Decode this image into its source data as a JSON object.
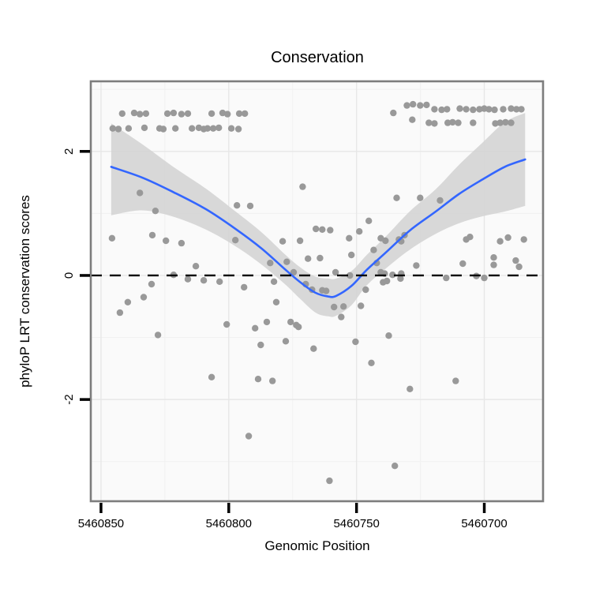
{
  "title": "Conservation",
  "colors": {
    "point": "#999999",
    "smooth_line": "#3366FF",
    "ribbon": "#d4d4d4",
    "panel_background": "#fafafa",
    "panel_border": "#7d7d7d",
    "grid_major": "#e7e7e7",
    "grid_minor": "#f2f2f2",
    "reference_line": "#000000",
    "tick_mark": "#000000",
    "text": "#000000"
  },
  "chart_data": {
    "type": "scatter",
    "title": "Conservation",
    "xlabel": "Genomic Position",
    "ylabel": "phyloP LRT conservation scores",
    "x_reversed": true,
    "xlim": [
      5460854,
      5460677
    ],
    "ylim": [
      -3.64,
      3.13
    ],
    "x_ticks": [
      5460850,
      5460800,
      5460750,
      5460700
    ],
    "x_minor": [
      5460825,
      5460775,
      5460725
    ],
    "y_ticks": [
      2,
      0,
      -2
    ],
    "y_minor": [
      3,
      1,
      -1,
      -3
    ],
    "grid": true,
    "legend": "none",
    "reference_line_y": 0,
    "points": [
      [
        5460841.7,
        2.61
      ],
      [
        5460837.0,
        2.62
      ],
      [
        5460834.8,
        2.6
      ],
      [
        5460832.4,
        2.61
      ],
      [
        5460824.0,
        2.61
      ],
      [
        5460821.6,
        2.62
      ],
      [
        5460818.5,
        2.6
      ],
      [
        5460816.0,
        2.61
      ],
      [
        5460806.7,
        2.61
      ],
      [
        5460802.4,
        2.62
      ],
      [
        5460800.5,
        2.6
      ],
      [
        5460795.9,
        2.61
      ],
      [
        5460793.7,
        2.61
      ],
      [
        5460845.4,
        2.37
      ],
      [
        5460843.2,
        2.36
      ],
      [
        5460839.2,
        2.37
      ],
      [
        5460833.0,
        2.38
      ],
      [
        5460827.1,
        2.37
      ],
      [
        5460825.6,
        2.36
      ],
      [
        5460820.9,
        2.37
      ],
      [
        5460814.4,
        2.37
      ],
      [
        5460811.7,
        2.38
      ],
      [
        5460809.8,
        2.36
      ],
      [
        5460808.3,
        2.37
      ],
      [
        5460806.1,
        2.37
      ],
      [
        5460803.9,
        2.38
      ],
      [
        5460799.0,
        2.37
      ],
      [
        5460796.2,
        2.36
      ],
      [
        5460730.3,
        2.74
      ],
      [
        5460727.9,
        2.76
      ],
      [
        5460725.1,
        2.74
      ],
      [
        5460722.6,
        2.75
      ],
      [
        5460719.5,
        2.68
      ],
      [
        5460716.7,
        2.67
      ],
      [
        5460714.6,
        2.68
      ],
      [
        5460709.6,
        2.69
      ],
      [
        5460707.1,
        2.68
      ],
      [
        5460704.4,
        2.67
      ],
      [
        5460701.9,
        2.68
      ],
      [
        5460700.0,
        2.69
      ],
      [
        5460698.2,
        2.68
      ],
      [
        5460696.0,
        2.67
      ],
      [
        5460692.6,
        2.68
      ],
      [
        5460689.5,
        2.69
      ],
      [
        5460687.4,
        2.68
      ],
      [
        5460685.5,
        2.68
      ],
      [
        5460721.7,
        2.46
      ],
      [
        5460719.5,
        2.45
      ],
      [
        5460714.3,
        2.46
      ],
      [
        5460712.4,
        2.47
      ],
      [
        5460710.2,
        2.46
      ],
      [
        5460704.4,
        2.46
      ],
      [
        5460695.7,
        2.45
      ],
      [
        5460693.8,
        2.46
      ],
      [
        5460691.7,
        2.47
      ],
      [
        5460689.5,
        2.46
      ],
      [
        5460735.6,
        2.62
      ],
      [
        5460728.2,
        2.51
      ],
      [
        5460834.8,
        1.33
      ],
      [
        5460828.7,
        1.04
      ],
      [
        5460796.8,
        1.13
      ],
      [
        5460791.6,
        1.12
      ],
      [
        5460771.1,
        1.43
      ],
      [
        5460734.3,
        1.25
      ],
      [
        5460725.1,
        1.25
      ],
      [
        5460717.3,
        1.21
      ],
      [
        5460845.7,
        0.6
      ],
      [
        5460829.9,
        0.65
      ],
      [
        5460824.6,
        0.56
      ],
      [
        5460818.5,
        0.52
      ],
      [
        5460797.4,
        0.57
      ],
      [
        5460778.9,
        0.55
      ],
      [
        5460772.1,
        0.56
      ],
      [
        5460765.9,
        0.75
      ],
      [
        5460763.4,
        0.74
      ],
      [
        5460760.3,
        0.73
      ],
      [
        5460752.9,
        0.6
      ],
      [
        5460748.9,
        0.71
      ],
      [
        5460745.2,
        0.88
      ],
      [
        5460743.3,
        0.41
      ],
      [
        5460740.5,
        0.6
      ],
      [
        5460738.7,
        0.56
      ],
      [
        5460733.4,
        0.58
      ],
      [
        5460732.5,
        0.55
      ],
      [
        5460731.2,
        0.65
      ],
      [
        5460707.1,
        0.58
      ],
      [
        5460705.6,
        0.62
      ],
      [
        5460693.8,
        0.55
      ],
      [
        5460690.7,
        0.61
      ],
      [
        5460684.5,
        0.58
      ],
      [
        5460812.9,
        0.15
      ],
      [
        5460821.6,
        0.01
      ],
      [
        5460816.0,
        -0.06
      ],
      [
        5460809.8,
        -0.08
      ],
      [
        5460803.6,
        -0.1
      ],
      [
        5460783.8,
        0.2
      ],
      [
        5460777.3,
        0.22
      ],
      [
        5460774.6,
        0.05
      ],
      [
        5460769.0,
        0.27
      ],
      [
        5460764.3,
        0.28
      ],
      [
        5460758.2,
        0.05
      ],
      [
        5460752.0,
        0.33
      ],
      [
        5460752.6,
        0.0
      ],
      [
        5460742.1,
        0.2
      ],
      [
        5460740.5,
        0.05
      ],
      [
        5460739.0,
        0.03
      ],
      [
        5460735.9,
        0.01
      ],
      [
        5460732.5,
        0.03
      ],
      [
        5460738.1,
        -0.09
      ],
      [
        5460732.8,
        -0.05
      ],
      [
        5460714.9,
        -0.04
      ],
      [
        5460703.1,
        -0.01
      ],
      [
        5460700.0,
        -0.04
      ],
      [
        5460726.6,
        0.16
      ],
      [
        5460708.4,
        0.19
      ],
      [
        5460696.3,
        0.29
      ],
      [
        5460696.3,
        0.17
      ],
      [
        5460687.7,
        0.24
      ],
      [
        5460686.4,
        0.14
      ],
      [
        5460830.2,
        -0.14
      ],
      [
        5460794.0,
        -0.19
      ],
      [
        5460782.3,
        -0.1
      ],
      [
        5460781.4,
        -0.43
      ],
      [
        5460769.9,
        -0.14
      ],
      [
        5460767.4,
        -0.23
      ],
      [
        5460763.4,
        -0.24
      ],
      [
        5460761.9,
        -0.25
      ],
      [
        5460758.8,
        -0.51
      ],
      [
        5460755.1,
        -0.5
      ],
      [
        5460756.0,
        -0.67
      ],
      [
        5460748.3,
        -0.49
      ],
      [
        5460746.4,
        -0.23
      ],
      [
        5460739.6,
        -0.11
      ],
      [
        5460839.5,
        -0.43
      ],
      [
        5460833.3,
        -0.35
      ],
      [
        5460842.6,
        -0.6
      ],
      [
        5460827.7,
        -0.96
      ],
      [
        5460800.8,
        -0.79
      ],
      [
        5460789.7,
        -0.85
      ],
      [
        5460785.1,
        -0.75
      ],
      [
        5460775.8,
        -0.75
      ],
      [
        5460773.6,
        -0.8
      ],
      [
        5460772.7,
        -0.83
      ],
      [
        5460787.5,
        -1.12
      ],
      [
        5460777.7,
        -1.06
      ],
      [
        5460766.8,
        -1.18
      ],
      [
        5460750.4,
        -1.07
      ],
      [
        5460737.4,
        -0.97
      ],
      [
        5460744.2,
        -1.41
      ],
      [
        5460806.7,
        -1.64
      ],
      [
        5460788.5,
        -1.67
      ],
      [
        5460782.9,
        -1.7
      ],
      [
        5460729.1,
        -1.83
      ],
      [
        5460711.2,
        -1.7
      ],
      [
        5460792.2,
        -2.59
      ],
      [
        5460760.6,
        -3.31
      ],
      [
        5460735.0,
        -3.07
      ]
    ],
    "smooth_line": [
      [
        5460846,
        1.75
      ],
      [
        5460834,
        1.58
      ],
      [
        5460822,
        1.35
      ],
      [
        5460809,
        1.07
      ],
      [
        5460797,
        0.74
      ],
      [
        5460787,
        0.43
      ],
      [
        5460778,
        0.1
      ],
      [
        5460772,
        -0.11
      ],
      [
        5460766,
        -0.28
      ],
      [
        5460761,
        -0.34
      ],
      [
        5460758,
        -0.33
      ],
      [
        5460752,
        -0.17
      ],
      [
        5460746,
        0.09
      ],
      [
        5460738,
        0.39
      ],
      [
        5460729,
        0.73
      ],
      [
        5460719,
        1.03
      ],
      [
        5460710,
        1.31
      ],
      [
        5460701,
        1.54
      ],
      [
        5460692,
        1.75
      ],
      [
        5460684,
        1.87
      ]
    ],
    "ribbon": [
      [
        5460846,
        0.97,
        2.45
      ],
      [
        5460834,
        1.05,
        2.12
      ],
      [
        5460822,
        0.95,
        1.76
      ],
      [
        5460809,
        0.74,
        1.4
      ],
      [
        5460797,
        0.46,
        1.02
      ],
      [
        5460787,
        0.17,
        0.69
      ],
      [
        5460778,
        -0.14,
        0.34
      ],
      [
        5460772,
        -0.38,
        0.13
      ],
      [
        5460766,
        -0.6,
        -0.02
      ],
      [
        5460761,
        -0.66,
        -0.05
      ],
      [
        5460758,
        -0.65,
        -0.05
      ],
      [
        5460752,
        -0.48,
        0.07
      ],
      [
        5460746,
        -0.16,
        0.33
      ],
      [
        5460738,
        0.13,
        0.65
      ],
      [
        5460729,
        0.42,
        1.04
      ],
      [
        5460719,
        0.67,
        1.39
      ],
      [
        5460710,
        0.84,
        1.78
      ],
      [
        5460701,
        0.95,
        2.13
      ],
      [
        5460692,
        1.03,
        2.47
      ],
      [
        5460684,
        1.12,
        2.62
      ]
    ]
  }
}
